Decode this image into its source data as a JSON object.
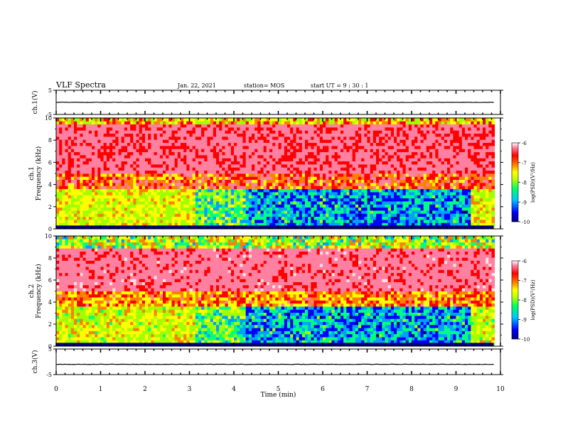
{
  "header": {
    "title": "VLF Spectra",
    "date": "Jan. 22, 2021",
    "station": "station= MOS",
    "start": "start  UT =   9 : 30 : 1"
  },
  "chart_data": {
    "type": "heatmap",
    "x": {
      "label": "Time  (min)",
      "lim": [
        0,
        10
      ],
      "ticks": [
        "0",
        "1",
        "2",
        "3",
        "4",
        "5",
        "6",
        "7",
        "8",
        "9",
        "10"
      ]
    },
    "panels": [
      {
        "name": "ch.1(V)",
        "type": "line",
        "ylabel": "ch.1(V)",
        "ylim": [
          -5,
          5
        ],
        "yticks": [
          "5",
          "-5"
        ],
        "level": 0
      },
      {
        "name": "ch.1 spectrogram",
        "type": "heatmap",
        "ylabel": "ch.1",
        "ylabel2": "Frequency (kHz)",
        "ylim": [
          0,
          10
        ],
        "yticks": [
          "0",
          "2",
          "4",
          "6",
          "8",
          "10"
        ]
      },
      {
        "name": "ch.2 spectrogram",
        "type": "heatmap",
        "ylabel": "ch.2",
        "ylabel2": "Frequency (kHz)",
        "ylim": [
          0,
          10
        ],
        "yticks": [
          "0",
          "2",
          "4",
          "6",
          "8",
          "10"
        ]
      },
      {
        "name": "ch.3(V)",
        "type": "line",
        "ylabel": "ch.3(V)",
        "ylim": [
          -5,
          5
        ],
        "yticks": [
          "5",
          "-5"
        ],
        "level": -1
      }
    ],
    "colorbar": {
      "label": "log(PSD)(V²/Hz)",
      "range": [
        -10,
        -6
      ],
      "ticks": [
        "-6",
        "-7",
        "-8",
        "-9",
        "-10"
      ]
    },
    "colors": [
      "#000080",
      "#0000ff",
      "#00a0ff",
      "#00ff80",
      "#a0ff00",
      "#ffff00",
      "#ff8000",
      "#ff0000",
      "#ff80a0",
      "#ffe0e0"
    ]
  }
}
